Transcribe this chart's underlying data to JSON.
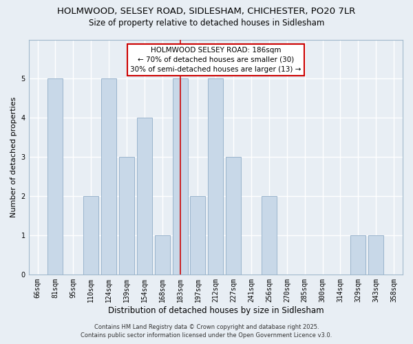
{
  "title": "HOLMWOOD, SELSEY ROAD, SIDLESHAM, CHICHESTER, PO20 7LR",
  "subtitle": "Size of property relative to detached houses in Sidlesham",
  "xlabel": "Distribution of detached houses by size in Sidlesham",
  "ylabel": "Number of detached properties",
  "categories": [
    "66sqm",
    "81sqm",
    "95sqm",
    "110sqm",
    "124sqm",
    "139sqm",
    "154sqm",
    "168sqm",
    "183sqm",
    "197sqm",
    "212sqm",
    "227sqm",
    "241sqm",
    "256sqm",
    "270sqm",
    "285sqm",
    "300sqm",
    "314sqm",
    "329sqm",
    "343sqm",
    "358sqm"
  ],
  "values": [
    0,
    5,
    0,
    2,
    5,
    3,
    4,
    1,
    5,
    2,
    5,
    3,
    0,
    2,
    0,
    0,
    0,
    0,
    1,
    1,
    0
  ],
  "bar_color": "#c8d8e8",
  "bar_edge_color": "#9ab4cc",
  "red_line_index": 8,
  "ylim": [
    0,
    6
  ],
  "yticks": [
    0,
    1,
    2,
    3,
    4,
    5,
    6
  ],
  "annotation_title": "HOLMWOOD SELSEY ROAD: 186sqm",
  "annotation_line1": "← 70% of detached houses are smaller (30)",
  "annotation_line2": "30% of semi-detached houses are larger (13) →",
  "annotation_box_color": "#ffffff",
  "annotation_box_edge": "#cc0000",
  "footer_line1": "Contains HM Land Registry data © Crown copyright and database right 2025.",
  "footer_line2": "Contains public sector information licensed under the Open Government Licence v3.0.",
  "background_color": "#e8eef4",
  "grid_color": "#ffffff",
  "title_fontsize": 9.5,
  "subtitle_fontsize": 8.5,
  "xlabel_fontsize": 8.5,
  "ylabel_fontsize": 8,
  "tick_fontsize": 7,
  "footer_fontsize": 6,
  "ann_fontsize": 7.5
}
